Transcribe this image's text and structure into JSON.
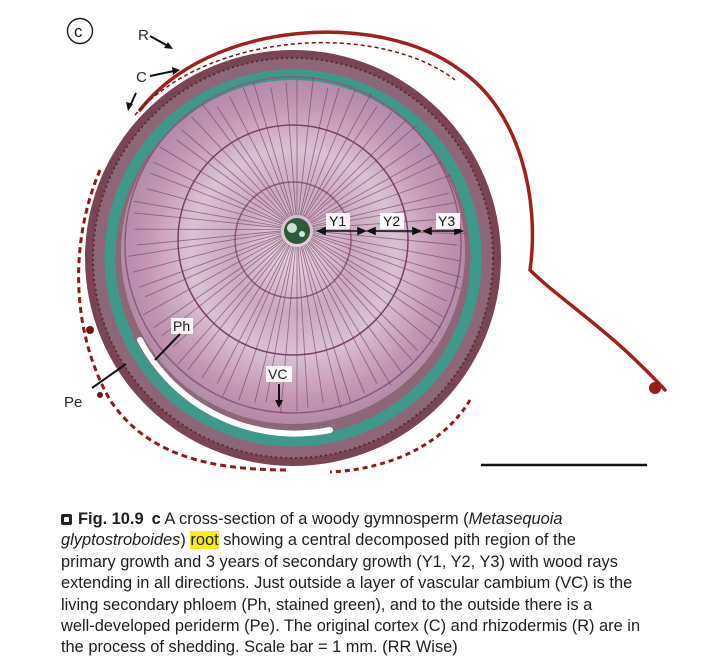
{
  "figure": {
    "panel_letter": "c",
    "labels": {
      "R": "R",
      "C": "C",
      "Y1": "Y1",
      "Y2": "Y2",
      "Y3": "Y3",
      "Ph": "Ph",
      "VC": "VC",
      "Pe": "Pe"
    },
    "colors": {
      "xylem": "#c9a0b8",
      "ring_lines": "#7d3f6a",
      "phloem": "#3d9a8a",
      "periderm": "#6a2f3c",
      "cortex": "#a0201c",
      "pith": "#2e5a3a"
    }
  },
  "caption": {
    "fig_number": "Fig. 10.9",
    "panel": "c",
    "line1_a": "A cross-section of a woody gymnosperm (",
    "line1_species": "Metasequoia",
    "line2_species": "glyptostroboides",
    "line2_a": ") ",
    "line2_highlight": "root",
    "line2_b": " showing a central decomposed pith region of the",
    "line3": "primary growth and 3 years of secondary growth (Y1, Y2, Y3) with wood rays",
    "line4": "extending in all directions. Just outside a layer of vascular cambium (VC) is the",
    "line5": "living secondary phloem (Ph, stained green), and to the outside there is a",
    "line6": "well-developed periderm (Pe). The original cortex (C) and rhizodermis (R) are in",
    "line7": "the process of shedding. Scale bar = 1 mm. (RR Wise)"
  }
}
